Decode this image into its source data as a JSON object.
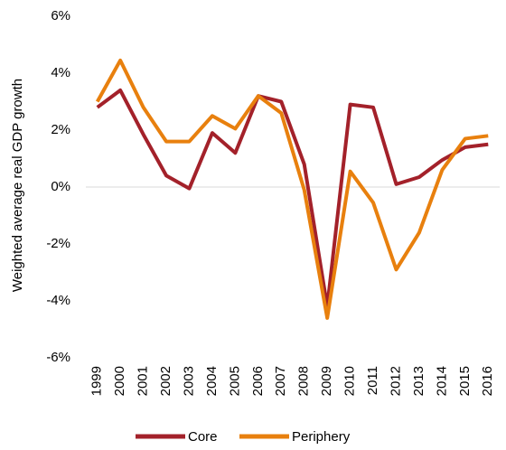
{
  "chart_data": {
    "type": "line",
    "y_label": "Weighted average real GDP growth",
    "categories": [
      "1999",
      "2000",
      "2001",
      "2002",
      "2003",
      "2004",
      "2005",
      "2006",
      "2007",
      "2008",
      "2009",
      "2010",
      "2011",
      "2012",
      "2013",
      "2014",
      "2015",
      "2016"
    ],
    "series": [
      {
        "name": "Core",
        "color": "#a3212a",
        "values": [
          2.8,
          3.4,
          1.85,
          0.4,
          -0.05,
          1.9,
          1.2,
          3.2,
          3.0,
          0.8,
          -4.2,
          2.9,
          2.8,
          0.1,
          0.35,
          0.95,
          1.4,
          1.5
        ]
      },
      {
        "name": "Periphery",
        "color": "#e8800e",
        "values": [
          3.0,
          4.45,
          2.8,
          1.6,
          1.6,
          2.5,
          2.05,
          3.2,
          2.6,
          -0.1,
          -4.6,
          0.55,
          -0.55,
          -2.9,
          -1.6,
          0.6,
          1.7,
          1.8
        ]
      }
    ],
    "ylim": [
      -6,
      6
    ],
    "yticks": [
      {
        "value": -6,
        "label": "-6%"
      },
      {
        "value": -4,
        "label": "-4%"
      },
      {
        "value": -2,
        "label": "-2%"
      },
      {
        "value": 0,
        "label": "0%"
      },
      {
        "value": 2,
        "label": "2%"
      },
      {
        "value": 4,
        "label": "4%"
      },
      {
        "value": 6,
        "label": "6%"
      }
    ],
    "grid": false,
    "legend": "bottom"
  }
}
